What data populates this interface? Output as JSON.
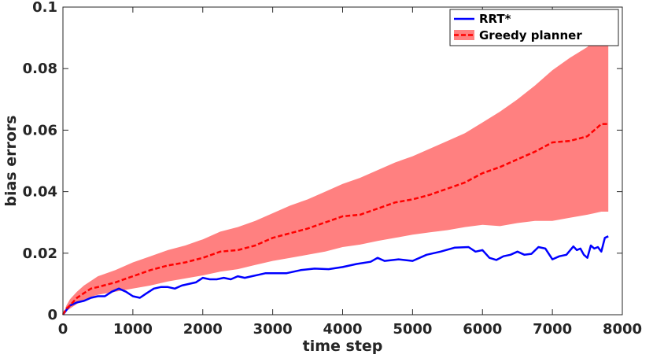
{
  "chart_data": {
    "type": "line",
    "title": "",
    "xlabel": "time step",
    "ylabel": "bias errors",
    "xlim": [
      0,
      8000
    ],
    "ylim": [
      0,
      0.1
    ],
    "x_ticks": [
      0,
      1000,
      2000,
      3000,
      4000,
      5000,
      6000,
      7000,
      8000
    ],
    "x_tick_labels": [
      "0",
      "1000",
      "2000",
      "3000",
      "4000",
      "5000",
      "6000",
      "7000",
      "8000"
    ],
    "y_ticks": [
      0,
      0.02,
      0.04,
      0.06,
      0.08,
      0.1
    ],
    "y_tick_labels": [
      "0",
      "0.02",
      "0.04",
      "0.06",
      "0.08",
      "0.1"
    ],
    "grid": false,
    "legend_position": "top-right",
    "series": [
      {
        "name": "RRT*",
        "style": "solid",
        "color": "#0000ff",
        "x": [
          0,
          50,
          100,
          200,
          300,
          400,
          500,
          600,
          700,
          800,
          900,
          1000,
          1100,
          1200,
          1300,
          1400,
          1500,
          1600,
          1700,
          1800,
          1900,
          2000,
          2100,
          2200,
          2300,
          2400,
          2500,
          2600,
          2700,
          2800,
          2900,
          3000,
          3200,
          3400,
          3600,
          3800,
          4000,
          4200,
          4400,
          4500,
          4600,
          4800,
          5000,
          5200,
          5400,
          5600,
          5800,
          5900,
          6000,
          6100,
          6200,
          6300,
          6400,
          6500,
          6600,
          6700,
          6800,
          6900,
          7000,
          7100,
          7200,
          7300,
          7350,
          7400,
          7450,
          7500,
          7550,
          7600,
          7650,
          7700,
          7750,
          7800
        ],
        "values": [
          0,
          0.0015,
          0.003,
          0.004,
          0.0045,
          0.0055,
          0.006,
          0.006,
          0.0075,
          0.0085,
          0.0075,
          0.006,
          0.0055,
          0.007,
          0.0085,
          0.009,
          0.009,
          0.0085,
          0.0095,
          0.01,
          0.0105,
          0.012,
          0.0115,
          0.0115,
          0.012,
          0.0115,
          0.0125,
          0.012,
          0.0125,
          0.013,
          0.0135,
          0.0135,
          0.0135,
          0.0145,
          0.015,
          0.0148,
          0.0155,
          0.0165,
          0.0172,
          0.0185,
          0.0175,
          0.018,
          0.0175,
          0.0195,
          0.0205,
          0.0218,
          0.022,
          0.0205,
          0.021,
          0.0185,
          0.0178,
          0.019,
          0.0195,
          0.0205,
          0.0195,
          0.0198,
          0.022,
          0.0215,
          0.018,
          0.019,
          0.0195,
          0.0222,
          0.021,
          0.0215,
          0.0195,
          0.0185,
          0.0225,
          0.0215,
          0.022,
          0.0205,
          0.025,
          0.0255
        ]
      },
      {
        "name": "Greedy planner",
        "style": "dashed",
        "color": "#ff0000",
        "x": [
          0,
          50,
          100,
          200,
          300,
          400,
          500,
          750,
          1000,
          1250,
          1500,
          1750,
          2000,
          2250,
          2500,
          2750,
          3000,
          3250,
          3500,
          3750,
          4000,
          4250,
          4500,
          4750,
          5000,
          5250,
          5500,
          5750,
          6000,
          6250,
          6500,
          6750,
          7000,
          7250,
          7500,
          7600,
          7700,
          7800
        ],
        "values": [
          0,
          0.002,
          0.003,
          0.0055,
          0.007,
          0.0085,
          0.009,
          0.0105,
          0.0125,
          0.0145,
          0.016,
          0.017,
          0.0185,
          0.0205,
          0.021,
          0.0225,
          0.025,
          0.0265,
          0.028,
          0.03,
          0.032,
          0.0325,
          0.0345,
          0.0365,
          0.0375,
          0.039,
          0.041,
          0.043,
          0.046,
          0.048,
          0.0505,
          0.053,
          0.056,
          0.0565,
          0.058,
          0.06,
          0.062,
          0.062
        ],
        "band": {
          "name": "Greedy planner spread",
          "color": "#ff8080",
          "upper": [
            0,
            0.003,
            0.005,
            0.0075,
            0.0095,
            0.011,
            0.0125,
            0.0145,
            0.017,
            0.019,
            0.021,
            0.0225,
            0.0245,
            0.027,
            0.0285,
            0.0305,
            0.033,
            0.0355,
            0.0375,
            0.04,
            0.0425,
            0.0445,
            0.047,
            0.0495,
            0.0515,
            0.054,
            0.0565,
            0.059,
            0.0625,
            0.066,
            0.07,
            0.0745,
            0.0795,
            0.0835,
            0.087,
            0.0895,
            0.0905,
            0.0905
          ],
          "lower": [
            0,
            0.0012,
            0.002,
            0.0035,
            0.0048,
            0.0058,
            0.0065,
            0.0075,
            0.0085,
            0.0095,
            0.0108,
            0.0118,
            0.0128,
            0.014,
            0.0148,
            0.0162,
            0.0175,
            0.0185,
            0.0195,
            0.0205,
            0.022,
            0.0228,
            0.024,
            0.025,
            0.026,
            0.0268,
            0.0275,
            0.0285,
            0.0292,
            0.0288,
            0.0298,
            0.0305,
            0.0305,
            0.0315,
            0.0325,
            0.033,
            0.0335,
            0.0335
          ]
        }
      }
    ]
  }
}
